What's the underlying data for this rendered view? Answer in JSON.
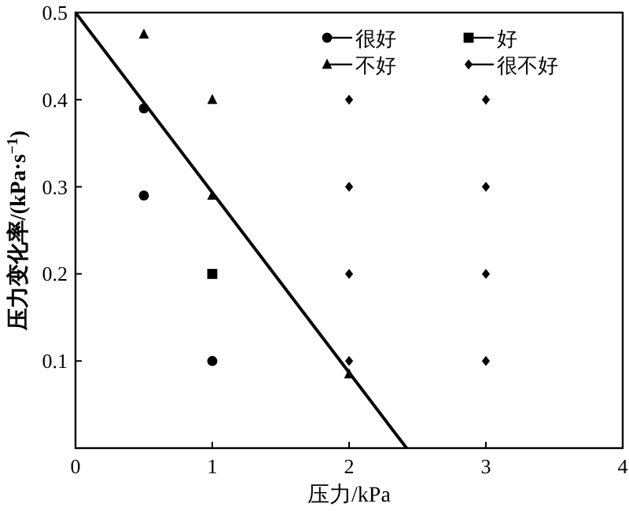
{
  "chart_data": {
    "type": "scatter",
    "xlabel": "压力/kPa",
    "ylabel": "压力变化率/(kPa·s$^{−1}$)",
    "xlim": [
      0,
      4
    ],
    "xticks": [
      0,
      1,
      2,
      3,
      4
    ],
    "ylim": [
      0,
      0.5
    ],
    "yticks": [
      0.1,
      0.2,
      0.3,
      0.4,
      0.5
    ],
    "legend": "top right",
    "grid": false,
    "series": [
      {
        "type": "line",
        "color": "#000000",
        "line_style": "solid",
        "x": [
          0,
          2.42
        ],
        "values": [
          0.5,
          0
        ]
      },
      {
        "name": "很好",
        "color": "#000000",
        "marker": "circle",
        "x": [
          0.5,
          0.5,
          1
        ],
        "values": [
          0.39,
          0.29,
          0.1
        ]
      },
      {
        "name": "好",
        "color": "#000000",
        "marker": "square",
        "x": [
          1
        ],
        "values": [
          0.2
        ]
      },
      {
        "name": "很不好",
        "color": "#000000",
        "marker": "diamond",
        "x": [
          2,
          2,
          2,
          2,
          3,
          3,
          3,
          3
        ],
        "values": [
          0.4,
          0.3,
          0.2,
          0.1,
          0.4,
          0.3,
          0.2,
          0.1
        ]
      },
      {
        "name": "不好",
        "color": "#000000",
        "marker": "triangle",
        "x": [
          0.5,
          1,
          1,
          2
        ],
        "values": [
          0.475,
          0.4,
          0.29,
          0.085
        ]
      }
    ]
  }
}
